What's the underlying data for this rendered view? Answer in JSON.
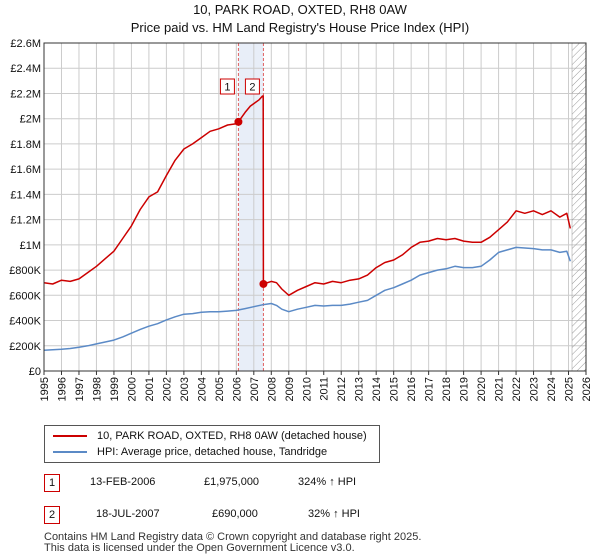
{
  "header": {
    "title": "10, PARK ROAD, OXTED, RH8 0AW",
    "subtitle": "Price paid vs. HM Land Registry's House Price Index (HPI)"
  },
  "colors": {
    "property": "#cc0000",
    "hpi": "#5b8ac6",
    "highlight": "#e8eef8",
    "marker_line": "#e06060",
    "hatch": "#999999",
    "grid": "#cccccc"
  },
  "chart_data": {
    "type": "line",
    "x_range": [
      1995,
      2026
    ],
    "ylim": [
      0,
      2600000
    ],
    "y_ticks": [
      0,
      200000,
      400000,
      600000,
      800000,
      1000000,
      1200000,
      1400000,
      1600000,
      1800000,
      2000000,
      2200000,
      2400000,
      2600000
    ],
    "y_tick_labels": [
      "£0",
      "£200K",
      "£400K",
      "£600K",
      "£800K",
      "£1M",
      "£1.2M",
      "£1.4M",
      "£1.6M",
      "£1.8M",
      "£2M",
      "£2.2M",
      "£2.4M",
      "£2.6M"
    ],
    "x_ticks": [
      1995,
      1996,
      1997,
      1998,
      1999,
      2000,
      2001,
      2002,
      2003,
      2004,
      2005,
      2006,
      2007,
      2008,
      2009,
      2010,
      2011,
      2012,
      2013,
      2014,
      2015,
      2016,
      2017,
      2018,
      2019,
      2020,
      2021,
      2022,
      2023,
      2024,
      2025,
      2026
    ],
    "highlight_range": [
      2006.12,
      2007.55
    ],
    "hatch_from": 2025.2,
    "series": [
      {
        "name": "10, PARK ROAD, OXTED, RH8 0AW (detached house)",
        "color": "#cc0000",
        "x": [
          1995.0,
          1995.5,
          1996.0,
          1996.5,
          1997.0,
          1997.5,
          1998.0,
          1998.5,
          1999.0,
          1999.5,
          2000.0,
          2000.5,
          2001.0,
          2001.5,
          2002.0,
          2002.5,
          2003.0,
          2003.5,
          2004.0,
          2004.5,
          2005.0,
          2005.5,
          2006.0,
          2006.12,
          2006.5,
          2006.8,
          2007.0,
          2007.3,
          2007.5,
          2007.54,
          2007.55,
          2008.0,
          2008.3,
          2008.6,
          2009.0,
          2009.5,
          2010.0,
          2010.5,
          2011.0,
          2011.5,
          2012.0,
          2012.5,
          2013.0,
          2013.5,
          2014.0,
          2014.5,
          2015.0,
          2015.5,
          2016.0,
          2016.5,
          2017.0,
          2017.5,
          2018.0,
          2018.5,
          2019.0,
          2019.5,
          2020.0,
          2020.5,
          2021.0,
          2021.5,
          2022.0,
          2022.5,
          2023.0,
          2023.5,
          2024.0,
          2024.5,
          2024.9,
          2025.1
        ],
        "values": [
          700000,
          690000,
          720000,
          710000,
          730000,
          780000,
          830000,
          890000,
          950000,
          1050000,
          1150000,
          1280000,
          1380000,
          1420000,
          1550000,
          1670000,
          1760000,
          1800000,
          1850000,
          1900000,
          1920000,
          1950000,
          1960000,
          1975000,
          2050000,
          2100000,
          2120000,
          2150000,
          2180000,
          2180000,
          690000,
          710000,
          700000,
          650000,
          600000,
          640000,
          670000,
          700000,
          690000,
          710000,
          700000,
          720000,
          730000,
          760000,
          820000,
          860000,
          880000,
          920000,
          980000,
          1020000,
          1030000,
          1050000,
          1040000,
          1050000,
          1030000,
          1020000,
          1020000,
          1060000,
          1120000,
          1180000,
          1270000,
          1250000,
          1270000,
          1240000,
          1270000,
          1220000,
          1250000,
          1130000
        ]
      },
      {
        "name": "HPI: Average price, detached house, Tandridge",
        "color": "#5b8ac6",
        "x": [
          1995.0,
          1995.5,
          1996.0,
          1996.5,
          1997.0,
          1997.5,
          1998.0,
          1998.5,
          1999.0,
          1999.5,
          2000.0,
          2000.5,
          2001.0,
          2001.5,
          2002.0,
          2002.5,
          2003.0,
          2003.5,
          2004.0,
          2004.5,
          2005.0,
          2005.5,
          2006.0,
          2006.5,
          2007.0,
          2007.5,
          2008.0,
          2008.3,
          2008.6,
          2009.0,
          2009.5,
          2010.0,
          2010.5,
          2011.0,
          2011.5,
          2012.0,
          2012.5,
          2013.0,
          2013.5,
          2014.0,
          2014.5,
          2015.0,
          2015.5,
          2016.0,
          2016.5,
          2017.0,
          2017.5,
          2018.0,
          2018.5,
          2019.0,
          2019.5,
          2020.0,
          2020.5,
          2021.0,
          2021.5,
          2022.0,
          2022.5,
          2023.0,
          2023.5,
          2024.0,
          2024.5,
          2024.9,
          2025.1
        ],
        "values": [
          165000,
          168000,
          172000,
          178000,
          188000,
          200000,
          215000,
          230000,
          245000,
          270000,
          300000,
          330000,
          355000,
          375000,
          405000,
          430000,
          450000,
          455000,
          465000,
          470000,
          470000,
          475000,
          480000,
          495000,
          510000,
          525000,
          535000,
          520000,
          490000,
          470000,
          490000,
          505000,
          520000,
          515000,
          520000,
          520000,
          530000,
          545000,
          560000,
          600000,
          640000,
          660000,
          690000,
          720000,
          760000,
          780000,
          800000,
          810000,
          830000,
          820000,
          820000,
          830000,
          880000,
          940000,
          960000,
          980000,
          975000,
          970000,
          960000,
          960000,
          940000,
          950000,
          870000
        ]
      }
    ],
    "transactions": [
      {
        "label": "1",
        "x": 2006.12,
        "value": 1975000
      },
      {
        "label": "2",
        "x": 2007.55,
        "value": 690000
      }
    ]
  },
  "legend": {
    "items": [
      {
        "label": "10, PARK ROAD, OXTED, RH8 0AW (detached house)"
      },
      {
        "label": "HPI: Average price, detached house, Tandridge"
      }
    ]
  },
  "table": {
    "rows": [
      {
        "num": "1",
        "date": "13-FEB-2006",
        "price": "£1,975,000",
        "hpi": "324% ↑ HPI"
      },
      {
        "num": "2",
        "date": "18-JUL-2007",
        "price": "£690,000",
        "hpi": "32% ↑ HPI"
      }
    ]
  },
  "footer": {
    "line1": "Contains HM Land Registry data © Crown copyright and database right 2025.",
    "line2": "This data is licensed under the Open Government Licence v3.0."
  }
}
